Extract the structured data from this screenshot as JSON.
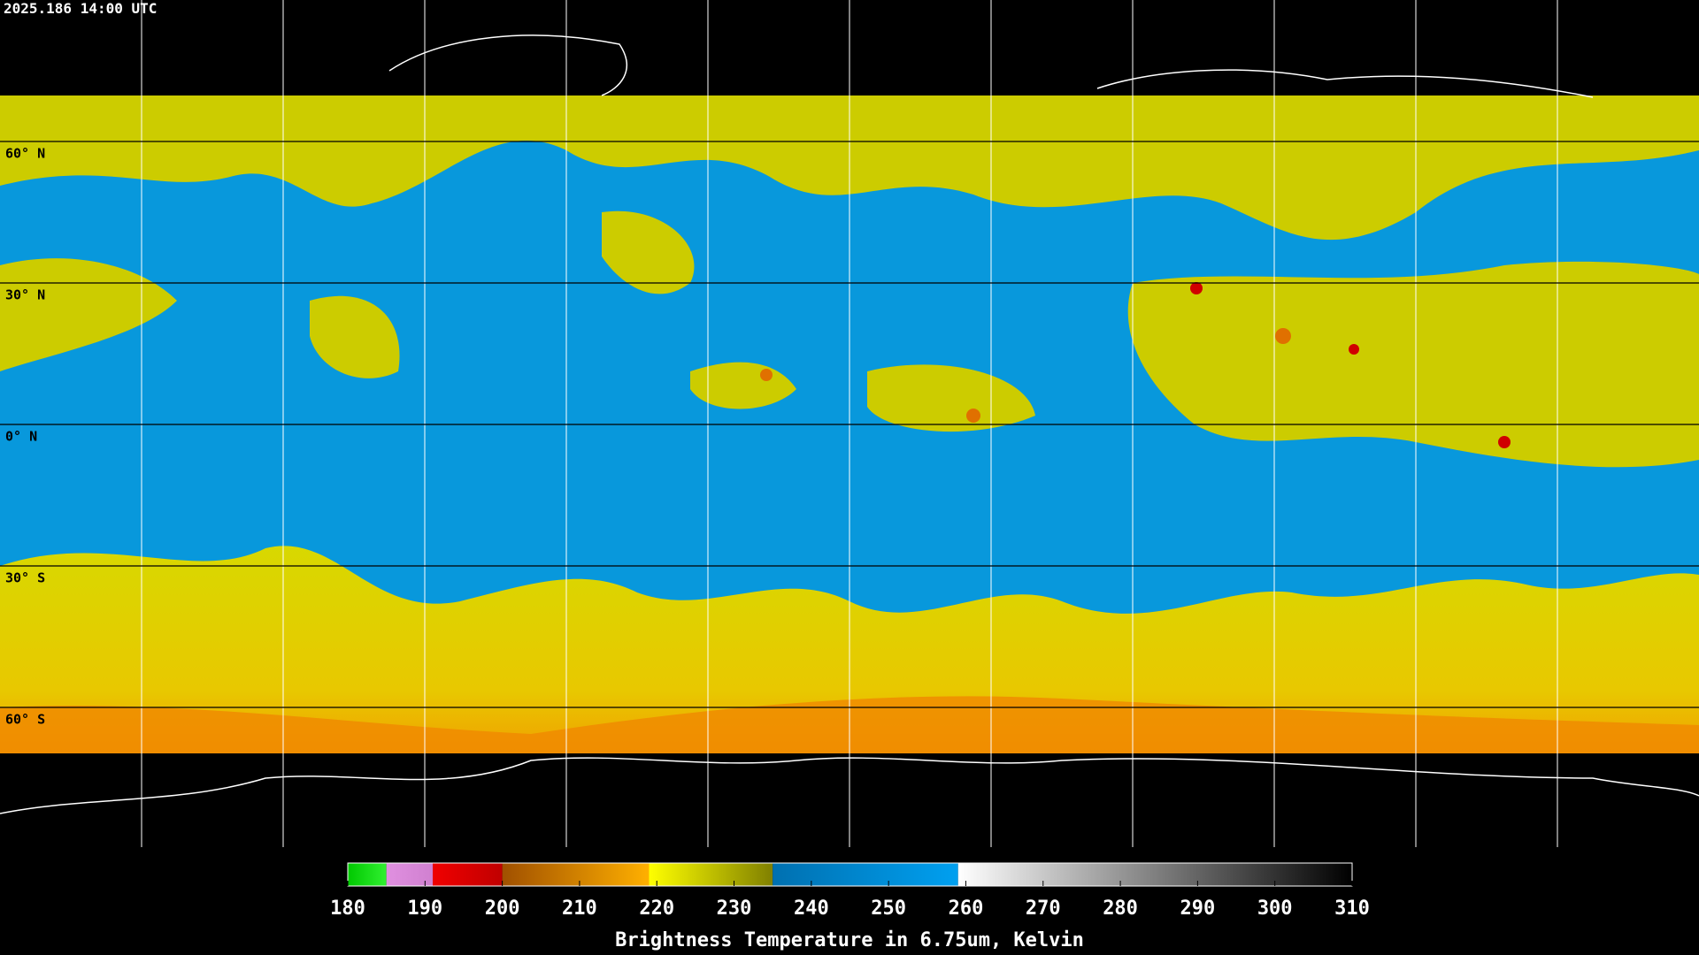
{
  "timestamp": "2025.186 14:00 UTC",
  "latitudes": [
    {
      "value": 60,
      "label": "60° N"
    },
    {
      "value": 30,
      "label": "30° N"
    },
    {
      "value": 0,
      "label": "0° N"
    },
    {
      "value": -30,
      "label": "30° S"
    },
    {
      "value": -60,
      "label": "60° S"
    }
  ],
  "colorbar": {
    "title": "Brightness Temperature in 6.75um, Kelvin",
    "range": [
      180,
      310
    ],
    "ticks": [
      180,
      190,
      200,
      210,
      220,
      230,
      240,
      250,
      260,
      270,
      280,
      290,
      300,
      310
    ],
    "segments": [
      {
        "from": 180,
        "to": 185,
        "colors": [
          "#00c800",
          "#30f030"
        ]
      },
      {
        "from": 185,
        "to": 191,
        "colors": [
          "#e090e0",
          "#d080d0"
        ]
      },
      {
        "from": 191,
        "to": 200,
        "colors": [
          "#f00000",
          "#c00000"
        ]
      },
      {
        "from": 200,
        "to": 219,
        "colors": [
          "#a05000",
          "#ffb000"
        ]
      },
      {
        "from": 219,
        "to": 235,
        "colors": [
          "#ffff00",
          "#808000"
        ]
      },
      {
        "from": 235,
        "to": 259,
        "colors": [
          "#0070b0",
          "#00a0f0"
        ]
      },
      {
        "from": 259,
        "to": 310,
        "colors": [
          "#ffffff",
          "#000000"
        ]
      }
    ]
  }
}
